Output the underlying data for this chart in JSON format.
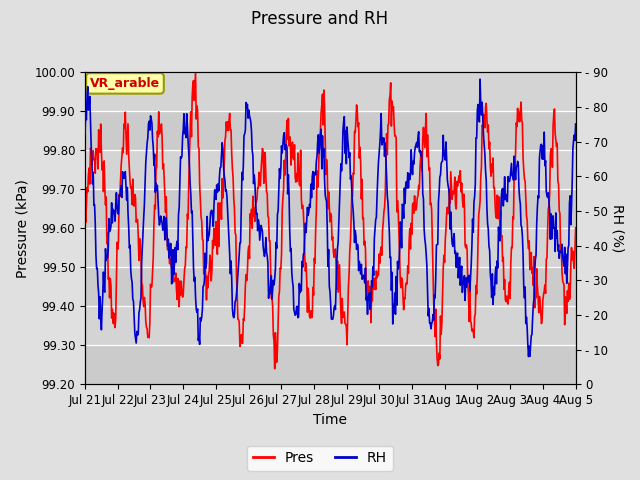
{
  "title": "Pressure and RH",
  "xlabel": "Time",
  "ylabel_left": "Pressure (kPa)",
  "ylabel_right": "RH (%)",
  "annotation": "VR_arable",
  "pres_ylim": [
    99.2,
    100.0
  ],
  "rh_ylim": [
    0,
    90
  ],
  "pres_yticks": [
    99.2,
    99.3,
    99.4,
    99.5,
    99.6,
    99.7,
    99.8,
    99.9,
    100.0
  ],
  "rh_ytick_vals": [
    0,
    10,
    20,
    30,
    40,
    50,
    60,
    70,
    80,
    90
  ],
  "rh_ytick_labels": [
    "0",
    "- 10",
    "- 20",
    "- 30",
    "- 40",
    "- 50",
    "- 60",
    "- 70",
    "- 80",
    "- 90"
  ],
  "x_tick_labels": [
    "Jul 21",
    "Jul 22",
    "Jul 23",
    "Jul 24",
    "Jul 25",
    "Jul 26",
    "Jul 27",
    "Jul 28",
    "Jul 29",
    "Jul 30",
    "Jul 31",
    "Aug 1",
    "Aug 2",
    "Aug 3",
    "Aug 4",
    "Aug 5"
  ],
  "pres_color": "#ff0000",
  "rh_color": "#0000cc",
  "fig_facecolor": "#e0e0e0",
  "plot_facecolor": "#d0d0d0",
  "grid_color": "#f0f0f0",
  "legend_pres": "Pres",
  "legend_rh": "RH",
  "title_fontsize": 12,
  "axis_label_fontsize": 10,
  "tick_fontsize": 8.5,
  "line_width": 1.2,
  "n_days": 15,
  "pts_per_day": 48
}
